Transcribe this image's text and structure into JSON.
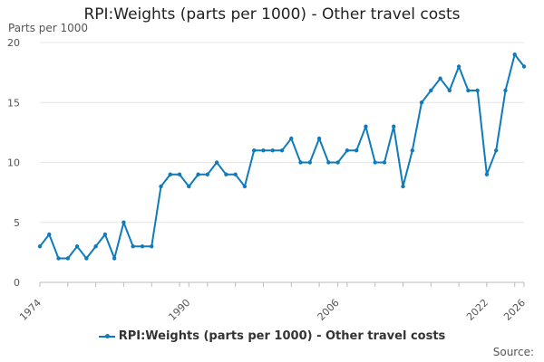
{
  "chart_data": {
    "type": "line",
    "title": "RPI:Weights (parts per 1000) - Other travel costs",
    "ylabel": "Parts per 1000",
    "xlabel": "",
    "ylim": [
      0,
      20
    ],
    "yticks": [
      0,
      5,
      10,
      15,
      20
    ],
    "xlim": [
      1974,
      2026
    ],
    "xticks": [
      "1974",
      "1990",
      "2006",
      "2022",
      "2026"
    ],
    "grid": true,
    "legend_position": "bottom",
    "series": [
      {
        "name": "RPI:Weights (parts per 1000) - Other travel costs",
        "color": "#0f7bbc",
        "x": [
          1974,
          1975,
          1976,
          1977,
          1978,
          1979,
          1980,
          1981,
          1982,
          1983,
          1984,
          1985,
          1986,
          1987,
          1988,
          1989,
          1990,
          1991,
          1992,
          1993,
          1994,
          1995,
          1996,
          1997,
          1998,
          1999,
          2000,
          2001,
          2002,
          2003,
          2004,
          2005,
          2006,
          2007,
          2008,
          2009,
          2010,
          2011,
          2012,
          2013,
          2014,
          2015,
          2016,
          2017,
          2018,
          2019,
          2020,
          2021,
          2022,
          2023,
          2024,
          2025,
          2026
        ],
        "values": [
          3,
          4,
          2,
          2,
          3,
          2,
          3,
          4,
          2,
          5,
          3,
          3,
          3,
          8,
          9,
          9,
          8,
          9,
          9,
          10,
          9,
          9,
          8,
          11,
          11,
          11,
          11,
          12,
          10,
          10,
          12,
          10,
          10,
          11,
          11,
          13,
          10,
          10,
          13,
          8,
          11,
          15,
          16,
          17,
          16,
          18,
          16,
          16,
          9,
          11,
          16,
          19,
          18
        ]
      }
    ]
  },
  "source_label": "Source:"
}
